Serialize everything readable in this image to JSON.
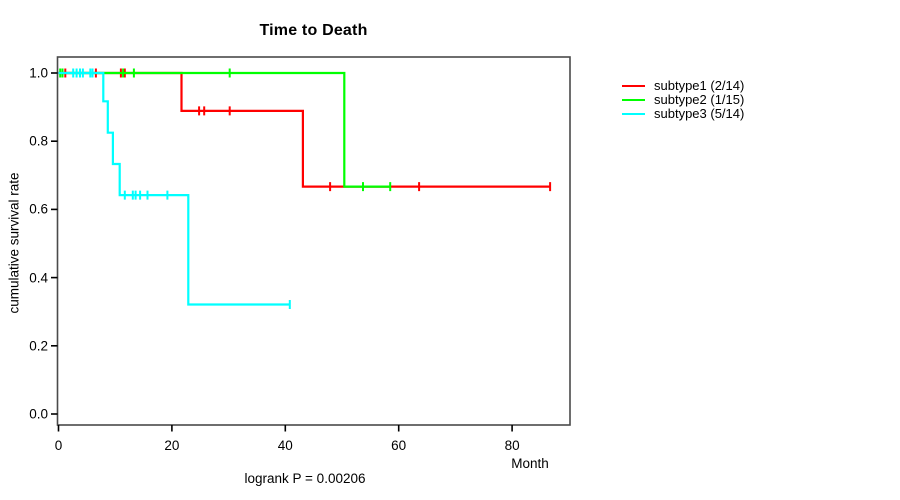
{
  "window": {
    "background": "#ffffff"
  },
  "chart_data": {
    "type": "line",
    "subtype": "kaplan-meier-step",
    "title": "Time to Death",
    "xlabel": "Month",
    "ylabel": "cumulative survival rate",
    "annotation": "logrank P = 0.00206",
    "xlim": [
      0,
      90
    ],
    "ylim": [
      0.0,
      1.0
    ],
    "xticks": [
      0,
      20,
      40,
      60,
      80
    ],
    "yticks": [
      0.0,
      0.2,
      0.4,
      0.6,
      0.8,
      1.0
    ],
    "grid": false,
    "legend_position": "right-outside",
    "axis_color": "#000000",
    "box_color": "#4a4a4a",
    "series": [
      {
        "name": "subtype1 (2/14)",
        "color": "#ff0000",
        "steps": [
          [
            0,
            1.0
          ],
          [
            21.7,
            1.0
          ],
          [
            21.7,
            0.889
          ],
          [
            43.1,
            0.889
          ],
          [
            43.1,
            0.667
          ],
          [
            86.7,
            0.667
          ]
        ],
        "censors": [
          [
            1.2,
            1.0
          ],
          [
            6.6,
            1.0
          ],
          [
            11.0,
            1.0
          ],
          [
            11.7,
            1.0
          ],
          [
            24.8,
            0.889
          ],
          [
            25.7,
            0.889
          ],
          [
            30.2,
            0.889
          ],
          [
            47.9,
            0.667
          ],
          [
            63.6,
            0.667
          ],
          [
            86.7,
            0.667
          ]
        ]
      },
      {
        "name": "subtype2 (1/15)",
        "color": "#00ff00",
        "steps": [
          [
            0,
            1.0
          ],
          [
            50.4,
            1.0
          ],
          [
            50.4,
            0.667
          ],
          [
            58.5,
            0.667
          ]
        ],
        "censors": [
          [
            0.3,
            1.0
          ],
          [
            0.7,
            1.0
          ],
          [
            11.4,
            1.0
          ],
          [
            13.3,
            1.0
          ],
          [
            30.2,
            1.0
          ],
          [
            53.7,
            0.667
          ],
          [
            58.5,
            0.667
          ]
        ]
      },
      {
        "name": "subtype3 (5/14)",
        "color": "#00ffff",
        "steps": [
          [
            0,
            1.0
          ],
          [
            7.9,
            1.0
          ],
          [
            7.9,
            0.917
          ],
          [
            8.7,
            0.917
          ],
          [
            8.7,
            0.825
          ],
          [
            9.6,
            0.825
          ],
          [
            9.6,
            0.733
          ],
          [
            10.8,
            0.733
          ],
          [
            10.8,
            0.642
          ],
          [
            22.9,
            0.642
          ],
          [
            22.9,
            0.321
          ],
          [
            40.8,
            0.321
          ]
        ],
        "censors": [
          [
            2.6,
            1.0
          ],
          [
            3.2,
            1.0
          ],
          [
            3.8,
            1.0
          ],
          [
            4.3,
            1.0
          ],
          [
            5.6,
            1.0
          ],
          [
            6.0,
            1.0
          ],
          [
            11.7,
            0.642
          ],
          [
            13.1,
            0.642
          ],
          [
            13.6,
            0.642
          ],
          [
            14.4,
            0.642
          ],
          [
            15.7,
            0.642
          ],
          [
            19.2,
            0.642
          ],
          [
            40.8,
            0.321
          ]
        ]
      }
    ]
  }
}
